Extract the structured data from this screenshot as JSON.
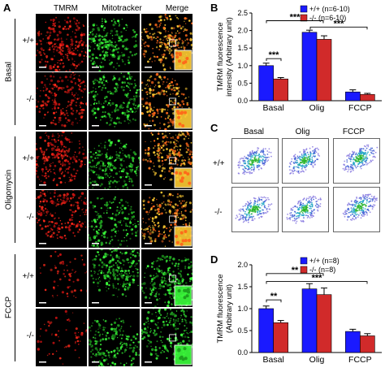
{
  "panelA": {
    "letter": "A",
    "columns": [
      "TMRM",
      "Mitotracker",
      "Merge"
    ],
    "groups": [
      {
        "label": "Basal",
        "rows": [
          "+/+",
          "-/-"
        ]
      },
      {
        "label": "Oligomycin",
        "rows": [
          "+/+",
          "-/-"
        ]
      },
      {
        "label": "FCCP",
        "rows": [
          "+/+",
          "-/-"
        ]
      }
    ]
  },
  "panelB": {
    "letter": "B",
    "chart_data": {
      "type": "bar",
      "categories": [
        "Basal",
        "Olig",
        "FCCP"
      ],
      "series": [
        {
          "name": "+/+ (n=6-10)",
          "values": [
            1.0,
            1.95,
            0.25
          ],
          "errors": [
            0.07,
            0.06,
            0.06
          ],
          "color": "#1a1aff"
        },
        {
          "name": "-/- (n=6-10)",
          "values": [
            0.62,
            1.75,
            0.18
          ],
          "errors": [
            0.04,
            0.1,
            0.03
          ],
          "color": "#d12a2a"
        }
      ],
      "ylabel": "TMRM fluorescence intensity (Arbitrary unit)",
      "ylim": [
        0,
        2.5
      ],
      "yticks": [
        "0.0",
        "0.5",
        "1.0",
        "1.5",
        "2.0",
        "2.5"
      ],
      "annotations": [
        "***",
        "***",
        "***"
      ]
    }
  },
  "panelC": {
    "letter": "C",
    "columns": [
      "Basal",
      "Olig",
      "FCCP"
    ],
    "rows": [
      "+/+",
      "-/-"
    ]
  },
  "panelD": {
    "letter": "D",
    "chart_data": {
      "type": "bar",
      "categories": [
        "Basal",
        "Olig",
        "FCCP"
      ],
      "series": [
        {
          "name": "+/+ (n=8)",
          "values": [
            1.0,
            1.45,
            0.48
          ],
          "errors": [
            0.06,
            0.12,
            0.05
          ],
          "color": "#1a1aff"
        },
        {
          "name": "-/- (n=8)",
          "values": [
            0.68,
            1.32,
            0.38
          ],
          "errors": [
            0.05,
            0.15,
            0.05
          ],
          "color": "#d12a2a"
        }
      ],
      "ylabel": "TMRM fluorescence (Arbitrary unit)",
      "ylim": [
        0,
        2.0
      ],
      "yticks": [
        "0.0",
        "0.5",
        "1.0",
        "1.5",
        "2.0"
      ],
      "annotations": [
        "**",
        "**",
        "***"
      ]
    }
  }
}
